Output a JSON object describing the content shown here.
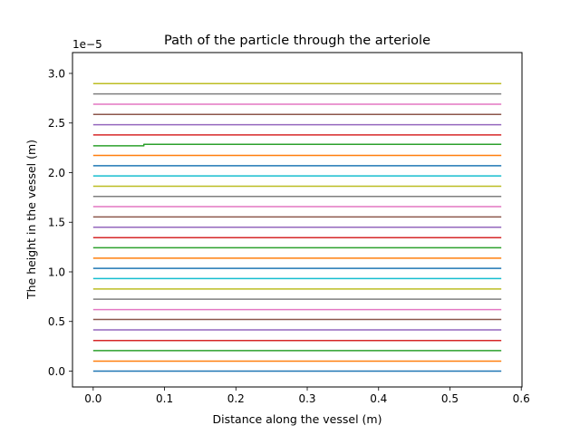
{
  "chart_data": {
    "type": "line",
    "title": "Path of the particle through the arteriole",
    "xlabel": "Distance along the vessel (m)",
    "ylabel": "The height in the vessel (m)",
    "y_offset_label": "1e−5",
    "xlim": [
      -0.029,
      0.601
    ],
    "ylim": [
      -1.6e-06,
      3.21e-05
    ],
    "x_ticks": [
      0.0,
      0.1,
      0.2,
      0.3,
      0.4,
      0.5,
      0.6
    ],
    "x_tick_labels": [
      "0.0",
      "0.1",
      "0.2",
      "0.3",
      "0.4",
      "0.5",
      "0.6"
    ],
    "y_ticks": [
      0.0,
      0.5,
      1.0,
      1.5,
      2.0,
      2.5,
      3.0
    ],
    "y_tick_labels": [
      "0.0",
      "0.5",
      "1.0",
      "1.5",
      "2.0",
      "2.5",
      "3.0"
    ],
    "y_scale": 1e-05,
    "grid": false,
    "legend": "none",
    "x_range": [
      0.0,
      0.572
    ],
    "colors": [
      "#1f77b4",
      "#ff7f0e",
      "#2ca02c",
      "#d62728",
      "#9467bd",
      "#8c564b",
      "#e377c2",
      "#7f7f7f",
      "#bcbd22",
      "#17becf"
    ],
    "series": [
      {
        "points": [
          [
            0.0,
            0.0
          ],
          [
            0.572,
            0.0
          ]
        ]
      },
      {
        "points": [
          [
            0.0,
            1e-06
          ],
          [
            0.572,
            1e-06
          ]
        ]
      },
      {
        "points": [
          [
            0.0,
            2.07e-06
          ],
          [
            0.572,
            2.07e-06
          ]
        ]
      },
      {
        "points": [
          [
            0.0,
            3.08e-06
          ],
          [
            0.572,
            3.08e-06
          ]
        ]
      },
      {
        "points": [
          [
            0.0,
            4.15e-06
          ],
          [
            0.572,
            4.15e-06
          ]
        ]
      },
      {
        "points": [
          [
            0.0,
            5.2e-06
          ],
          [
            0.572,
            5.2e-06
          ]
        ]
      },
      {
        "points": [
          [
            0.0,
            6.2e-06
          ],
          [
            0.572,
            6.2e-06
          ]
        ]
      },
      {
        "points": [
          [
            0.0,
            7.25e-06
          ],
          [
            0.572,
            7.25e-06
          ]
        ]
      },
      {
        "points": [
          [
            0.0,
            8.28e-06
          ],
          [
            0.572,
            8.28e-06
          ]
        ]
      },
      {
        "points": [
          [
            0.0,
            9.32e-06
          ],
          [
            0.572,
            9.32e-06
          ]
        ]
      },
      {
        "points": [
          [
            0.0,
            1.035e-05
          ],
          [
            0.572,
            1.035e-05
          ]
        ]
      },
      {
        "points": [
          [
            0.0,
            1.138e-05
          ],
          [
            0.572,
            1.138e-05
          ]
        ]
      },
      {
        "points": [
          [
            0.0,
            1.243e-05
          ],
          [
            0.572,
            1.243e-05
          ]
        ]
      },
      {
        "points": [
          [
            0.0,
            1.345e-05
          ],
          [
            0.572,
            1.345e-05
          ]
        ]
      },
      {
        "points": [
          [
            0.0,
            1.45e-05
          ],
          [
            0.572,
            1.45e-05
          ]
        ]
      },
      {
        "points": [
          [
            0.0,
            1.553e-05
          ],
          [
            0.572,
            1.553e-05
          ]
        ]
      },
      {
        "points": [
          [
            0.0,
            1.657e-05
          ],
          [
            0.572,
            1.657e-05
          ]
        ]
      },
      {
        "points": [
          [
            0.0,
            1.76e-05
          ],
          [
            0.572,
            1.76e-05
          ]
        ]
      },
      {
        "points": [
          [
            0.0,
            1.863e-05
          ],
          [
            0.572,
            1.863e-05
          ]
        ]
      },
      {
        "points": [
          [
            0.0,
            1.967e-05
          ],
          [
            0.572,
            1.967e-05
          ]
        ]
      },
      {
        "points": [
          [
            0.0,
            2.07e-05
          ],
          [
            0.572,
            2.07e-05
          ]
        ]
      },
      {
        "points": [
          [
            0.0,
            2.173e-05
          ],
          [
            0.572,
            2.173e-05
          ]
        ]
      },
      {
        "points": [
          [
            0.0,
            2.27e-05
          ],
          [
            0.071,
            2.27e-05
          ],
          [
            0.071,
            2.285e-05
          ],
          [
            0.572,
            2.285e-05
          ]
        ]
      },
      {
        "points": [
          [
            0.0,
            2.38e-05
          ],
          [
            0.572,
            2.38e-05
          ]
        ]
      },
      {
        "points": [
          [
            0.0,
            2.483e-05
          ],
          [
            0.572,
            2.483e-05
          ]
        ]
      },
      {
        "points": [
          [
            0.0,
            2.587e-05
          ],
          [
            0.572,
            2.587e-05
          ]
        ]
      },
      {
        "points": [
          [
            0.0,
            2.69e-05
          ],
          [
            0.572,
            2.69e-05
          ]
        ]
      },
      {
        "points": [
          [
            0.0,
            2.793e-05
          ],
          [
            0.572,
            2.793e-05
          ]
        ]
      },
      {
        "points": [
          [
            0.0,
            2.897e-05
          ],
          [
            0.572,
            2.897e-05
          ]
        ]
      }
    ]
  }
}
